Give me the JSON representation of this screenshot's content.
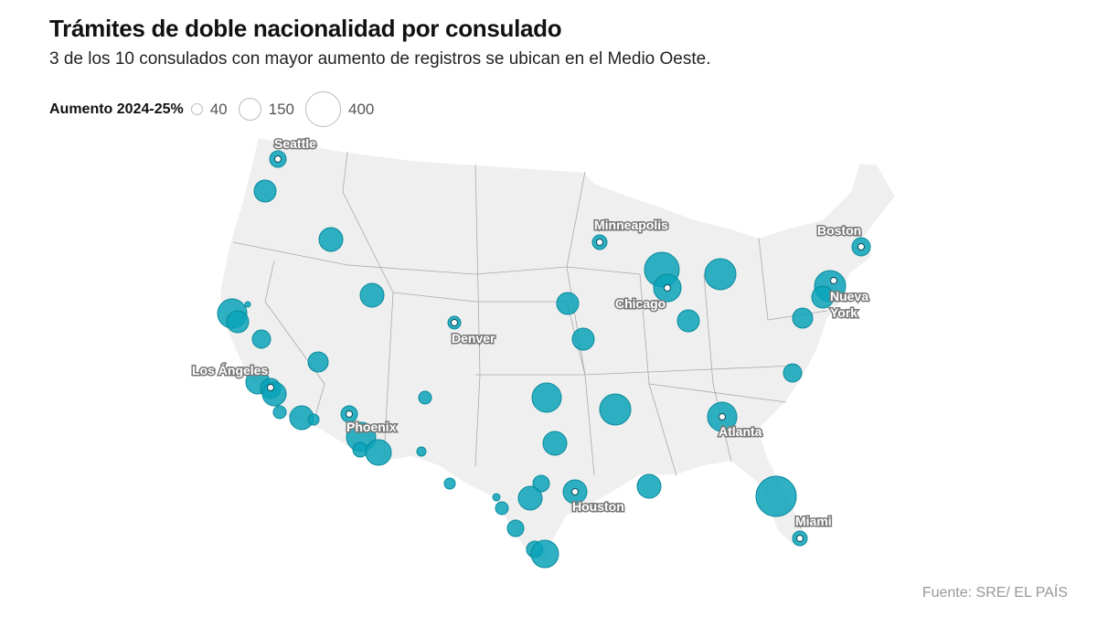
{
  "title": "Trámites de doble nacionalidad por consulado",
  "subtitle": "3 de los 10 consulados con mayor aumento de registros se ubican en el Medio Oeste.",
  "legend": {
    "title": "Aumento 2024-25%",
    "items": [
      {
        "label": "40"
      },
      {
        "label": "150"
      },
      {
        "label": "400"
      }
    ]
  },
  "source": "Fuente: SRE/ EL PAÍS",
  "colors": {
    "bubble": "#0aa3b8",
    "land": "#efefef"
  },
  "cities": [
    {
      "name": "Seattle"
    },
    {
      "name": "Minneapolis"
    },
    {
      "name": "Boston"
    },
    {
      "name": "Chicago"
    },
    {
      "name": "Nueva"
    },
    {
      "name": "York"
    },
    {
      "name": "Denver"
    },
    {
      "name": "Los Ángeles"
    },
    {
      "name": "Phoenix"
    },
    {
      "name": "Atlanta"
    },
    {
      "name": "Houston"
    },
    {
      "name": "Miami"
    }
  ]
}
